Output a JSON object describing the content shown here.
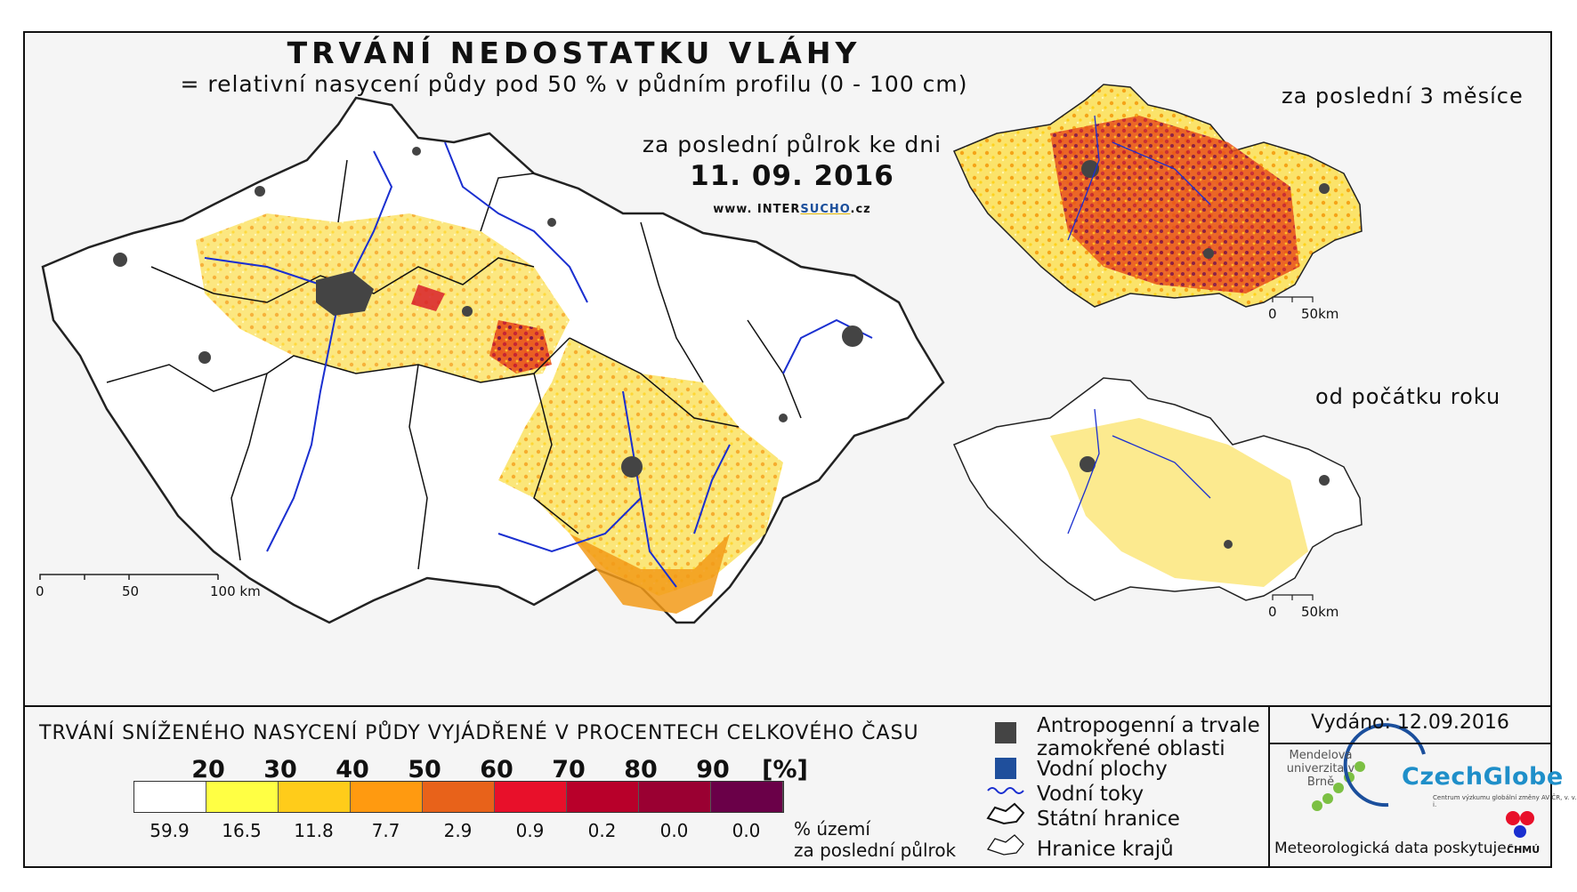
{
  "header": {
    "title": "TRVÁNÍ NEDOSTATKU VLÁHY",
    "subtitle": "= relativní nasycení půdy pod 50 % v půdním profilu (0 - 100 cm)",
    "period": "za poslední půlrok ke dni",
    "date": "11. 09. 2016",
    "site_prefix": "www. INTER",
    "site_mid": "SUCHO",
    "site_suffix": ".cz"
  },
  "main_map": {
    "scale": [
      "0",
      "50",
      "100 km"
    ]
  },
  "insets": [
    {
      "title": "za poslední 3 měsíce",
      "scale": [
        "0",
        "50km"
      ]
    },
    {
      "title": "od počátku roku",
      "scale": [
        "0",
        "50km"
      ]
    }
  ],
  "legend": {
    "title": "TRVÁNÍ SNÍŽENÉHO NASYCENÍ PŮDY VYJÁDŘENÉ V PROCENTECH CELKOVÉHO ČASU",
    "thresholds": [
      "20",
      "30",
      "40",
      "50",
      "60",
      "70",
      "80",
      "90",
      "[%]"
    ],
    "colors": [
      "#ffffff",
      "#ffff44",
      "#ffcc1a",
      "#ff9a10",
      "#e8621a",
      "#e8102a",
      "#b8002a",
      "#9a0032",
      "#6a0048"
    ],
    "percentages": [
      "59.9",
      "16.5",
      "11.8",
      "7.7",
      "2.9",
      "0.9",
      "0.2",
      "0.0",
      "0.0"
    ],
    "pct_note_1": "% území",
    "pct_note_2": "za poslední půlrok"
  },
  "symbols": {
    "anthropogenic_1": "Antropogenní a trvale",
    "anthropogenic_2": "zamokřené oblasti",
    "water_areas": "Vodní plochy",
    "rivers": "Vodní toky",
    "state_border": "Státní hranice",
    "regions": "Hranice krajů",
    "color_anthropogenic": "#444444",
    "color_water": "#1f4f9c",
    "color_river": "#1a2fd0"
  },
  "footer": {
    "issued": "Vydáno: 12.09.2016",
    "mendel": "Mendelova univerzita v Brně",
    "czechglobe": "CzechGlobe",
    "czechglobe_sub": "Centrum výzkumu globální změny AV ČR, v. v. i.",
    "meteo": "Meteorologická data poskytuje:",
    "chmu": "ČHMÚ"
  }
}
